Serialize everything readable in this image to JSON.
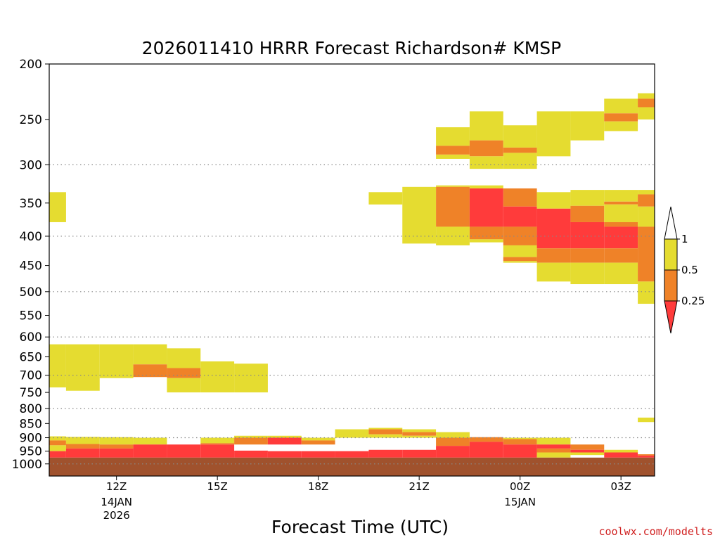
{
  "chart_data": {
    "type": "heatmap",
    "title": "2026011410 HRRR Forecast Richardson# KMSP",
    "xlabel": "Forecast Time (UTC)",
    "ylabel": "",
    "credit": "coolwx.com/modelts",
    "x_axis": {
      "unit": "forecast hours from 2026-01-14 10Z",
      "range": [
        0,
        18
      ],
      "ticks": [
        {
          "x": 2,
          "label": "12Z",
          "sub": [
            "14JAN",
            "2026"
          ]
        },
        {
          "x": 5,
          "label": "15Z",
          "sub": []
        },
        {
          "x": 8,
          "label": "18Z",
          "sub": []
        },
        {
          "x": 11,
          "label": "21Z",
          "sub": []
        },
        {
          "x": 14,
          "label": "00Z",
          "sub": [
            "15JAN"
          ]
        },
        {
          "x": 17,
          "label": "03Z",
          "sub": []
        }
      ]
    },
    "y_axis": {
      "unit": "hPa",
      "scale": "log",
      "inverted": true,
      "range": [
        200,
        1050
      ],
      "ticks": [
        200,
        250,
        300,
        350,
        400,
        450,
        500,
        550,
        600,
        650,
        700,
        750,
        800,
        850,
        900,
        950,
        1000
      ],
      "gridlines": [
        300,
        400,
        500,
        600,
        700,
        800,
        900,
        1000
      ]
    },
    "legend": {
      "placement": "right",
      "labels": [
        "1",
        "0.5",
        "0.25"
      ],
      "colors": [
        "#ffffff",
        "#e5dc30",
        "#ef8228",
        "#ff3b3b"
      ]
    },
    "colors": {
      "low": "#ff3b3b",
      "mid": "#ef8228",
      "high": "#e5dc30",
      "ground": "#a0522d"
    },
    "ground_pressure_hpa": 975,
    "cells": [
      {
        "x0": 0,
        "x1": 0.5,
        "p0": 335,
        "p1": 378,
        "c": "high"
      },
      {
        "x0": 0,
        "x1": 0.5,
        "p0": 618,
        "p1": 735,
        "c": "high"
      },
      {
        "x0": 0.5,
        "x1": 1.5,
        "p0": 618,
        "p1": 745,
        "c": "high"
      },
      {
        "x0": 1.5,
        "x1": 2.5,
        "p0": 618,
        "p1": 708,
        "c": "high"
      },
      {
        "x0": 2.5,
        "x1": 3.5,
        "p0": 618,
        "p1": 670,
        "c": "high"
      },
      {
        "x0": 2.5,
        "x1": 3.5,
        "p0": 670,
        "p1": 705,
        "c": "mid"
      },
      {
        "x0": 3.5,
        "x1": 4.5,
        "p0": 628,
        "p1": 680,
        "c": "high"
      },
      {
        "x0": 3.5,
        "x1": 4.5,
        "p0": 680,
        "p1": 708,
        "c": "mid"
      },
      {
        "x0": 3.5,
        "x1": 4.5,
        "p0": 708,
        "p1": 750,
        "c": "high"
      },
      {
        "x0": 4.5,
        "x1": 5.5,
        "p0": 662,
        "p1": 750,
        "c": "high"
      },
      {
        "x0": 5.5,
        "x1": 6.5,
        "p0": 668,
        "p1": 750,
        "c": "high"
      },
      {
        "x0": 0,
        "x1": 0.5,
        "p0": 895,
        "p1": 910,
        "c": "high"
      },
      {
        "x0": 0,
        "x1": 0.5,
        "p0": 910,
        "p1": 928,
        "c": "mid"
      },
      {
        "x0": 0,
        "x1": 0.5,
        "p0": 928,
        "p1": 950,
        "c": "high"
      },
      {
        "x0": 0,
        "x1": 0.5,
        "p0": 950,
        "p1": 975,
        "c": "low"
      },
      {
        "x0": 0.5,
        "x1": 1.5,
        "p0": 897,
        "p1": 923,
        "c": "high"
      },
      {
        "x0": 0.5,
        "x1": 1.5,
        "p0": 923,
        "p1": 940,
        "c": "mid"
      },
      {
        "x0": 0.5,
        "x1": 1.5,
        "p0": 940,
        "p1": 975,
        "c": "low"
      },
      {
        "x0": 1.5,
        "x1": 2.5,
        "p0": 898,
        "p1": 925,
        "c": "high"
      },
      {
        "x0": 1.5,
        "x1": 2.5,
        "p0": 925,
        "p1": 940,
        "c": "mid"
      },
      {
        "x0": 1.5,
        "x1": 2.5,
        "p0": 940,
        "p1": 975,
        "c": "low"
      },
      {
        "x0": 2.5,
        "x1": 3.5,
        "p0": 900,
        "p1": 925,
        "c": "high"
      },
      {
        "x0": 2.5,
        "x1": 3.5,
        "p0": 925,
        "p1": 975,
        "c": "low"
      },
      {
        "x0": 3.5,
        "x1": 4.5,
        "p0": 925,
        "p1": 975,
        "c": "low"
      },
      {
        "x0": 4.5,
        "x1": 5.5,
        "p0": 900,
        "p1": 920,
        "c": "high"
      },
      {
        "x0": 4.5,
        "x1": 5.5,
        "p0": 920,
        "p1": 925,
        "c": "mid"
      },
      {
        "x0": 4.5,
        "x1": 5.5,
        "p0": 925,
        "p1": 975,
        "c": "low"
      },
      {
        "x0": 5.5,
        "x1": 6.5,
        "p0": 893,
        "p1": 900,
        "c": "high"
      },
      {
        "x0": 5.5,
        "x1": 6.5,
        "p0": 900,
        "p1": 925,
        "c": "mid"
      },
      {
        "x0": 5.5,
        "x1": 6.5,
        "p0": 948,
        "p1": 975,
        "c": "low"
      },
      {
        "x0": 6.5,
        "x1": 7.5,
        "p0": 893,
        "p1": 900,
        "c": "high"
      },
      {
        "x0": 6.5,
        "x1": 7.5,
        "p0": 900,
        "p1": 925,
        "c": "low"
      },
      {
        "x0": 6.5,
        "x1": 7.5,
        "p0": 950,
        "p1": 975,
        "c": "low"
      },
      {
        "x0": 7.5,
        "x1": 8.5,
        "p0": 900,
        "p1": 910,
        "c": "high"
      },
      {
        "x0": 7.5,
        "x1": 8.5,
        "p0": 910,
        "p1": 925,
        "c": "mid"
      },
      {
        "x0": 7.5,
        "x1": 8.5,
        "p0": 950,
        "p1": 975,
        "c": "low"
      },
      {
        "x0": 8.5,
        "x1": 9.5,
        "p0": 870,
        "p1": 900,
        "c": "high"
      },
      {
        "x0": 8.5,
        "x1": 9.5,
        "p0": 950,
        "p1": 975,
        "c": "low"
      },
      {
        "x0": 9.5,
        "x1": 10.5,
        "p0": 865,
        "p1": 870,
        "c": "high"
      },
      {
        "x0": 9.5,
        "x1": 10.5,
        "p0": 870,
        "p1": 888,
        "c": "mid"
      },
      {
        "x0": 9.5,
        "x1": 10.5,
        "p0": 888,
        "p1": 900,
        "c": "high"
      },
      {
        "x0": 9.5,
        "x1": 10.5,
        "p0": 945,
        "p1": 975,
        "c": "low"
      },
      {
        "x0": 10.5,
        "x1": 11.5,
        "p0": 870,
        "p1": 880,
        "c": "high"
      },
      {
        "x0": 10.5,
        "x1": 11.5,
        "p0": 880,
        "p1": 893,
        "c": "mid"
      },
      {
        "x0": 10.5,
        "x1": 11.5,
        "p0": 893,
        "p1": 900,
        "c": "high"
      },
      {
        "x0": 10.5,
        "x1": 11.5,
        "p0": 945,
        "p1": 975,
        "c": "low"
      },
      {
        "x0": 11.5,
        "x1": 12.5,
        "p0": 880,
        "p1": 900,
        "c": "high"
      },
      {
        "x0": 11.5,
        "x1": 12.5,
        "p0": 900,
        "p1": 930,
        "c": "mid"
      },
      {
        "x0": 11.5,
        "x1": 12.5,
        "p0": 930,
        "p1": 975,
        "c": "low"
      },
      {
        "x0": 12.5,
        "x1": 13.5,
        "p0": 898,
        "p1": 915,
        "c": "mid"
      },
      {
        "x0": 12.5,
        "x1": 13.5,
        "p0": 915,
        "p1": 975,
        "c": "low"
      },
      {
        "x0": 13.5,
        "x1": 14.5,
        "p0": 900,
        "p1": 905,
        "c": "high"
      },
      {
        "x0": 13.5,
        "x1": 14.5,
        "p0": 905,
        "p1": 925,
        "c": "mid"
      },
      {
        "x0": 13.5,
        "x1": 14.5,
        "p0": 925,
        "p1": 975,
        "c": "low"
      },
      {
        "x0": 14.5,
        "x1": 15.5,
        "p0": 900,
        "p1": 925,
        "c": "high"
      },
      {
        "x0": 14.5,
        "x1": 15.5,
        "p0": 925,
        "p1": 940,
        "c": "low"
      },
      {
        "x0": 14.5,
        "x1": 15.5,
        "p0": 940,
        "p1": 955,
        "c": "mid"
      },
      {
        "x0": 14.5,
        "x1": 15.5,
        "p0": 955,
        "p1": 975,
        "c": "high"
      },
      {
        "x0": 15.5,
        "x1": 16.5,
        "p0": 925,
        "p1": 945,
        "c": "mid"
      },
      {
        "x0": 15.5,
        "x1": 16.5,
        "p0": 945,
        "p1": 955,
        "c": "low"
      },
      {
        "x0": 15.5,
        "x1": 16.5,
        "p0": 955,
        "p1": 965,
        "c": "high"
      },
      {
        "x0": 16.5,
        "x1": 17.5,
        "p0": 945,
        "p1": 955,
        "c": "high"
      },
      {
        "x0": 16.5,
        "x1": 17.5,
        "p0": 955,
        "p1": 975,
        "c": "low"
      },
      {
        "x0": 17.5,
        "x1": 18,
        "p0": 830,
        "p1": 845,
        "c": "high"
      },
      {
        "x0": 17.5,
        "x1": 18,
        "p0": 962,
        "p1": 967,
        "c": "mid"
      },
      {
        "x0": 17.5,
        "x1": 18,
        "p0": 967,
        "p1": 975,
        "c": "low"
      },
      {
        "x0": 9.5,
        "x1": 10.5,
        "p0": 335,
        "p1": 352,
        "c": "high"
      },
      {
        "x0": 10.5,
        "x1": 11.5,
        "p0": 328,
        "p1": 412,
        "c": "high"
      },
      {
        "x0": 11.5,
        "x1": 12.5,
        "p0": 258,
        "p1": 278,
        "c": "high"
      },
      {
        "x0": 11.5,
        "x1": 12.5,
        "p0": 278,
        "p1": 288,
        "c": "mid"
      },
      {
        "x0": 11.5,
        "x1": 12.5,
        "p0": 288,
        "p1": 293,
        "c": "high"
      },
      {
        "x0": 11.5,
        "x1": 12.5,
        "p0": 326,
        "p1": 328,
        "c": "high"
      },
      {
        "x0": 11.5,
        "x1": 12.5,
        "p0": 328,
        "p1": 385,
        "c": "mid"
      },
      {
        "x0": 11.5,
        "x1": 12.5,
        "p0": 385,
        "p1": 415,
        "c": "high"
      },
      {
        "x0": 12.5,
        "x1": 13.5,
        "p0": 242,
        "p1": 272,
        "c": "high"
      },
      {
        "x0": 12.5,
        "x1": 13.5,
        "p0": 272,
        "p1": 290,
        "c": "mid"
      },
      {
        "x0": 12.5,
        "x1": 13.5,
        "p0": 290,
        "p1": 305,
        "c": "high"
      },
      {
        "x0": 12.5,
        "x1": 13.5,
        "p0": 326,
        "p1": 330,
        "c": "high"
      },
      {
        "x0": 12.5,
        "x1": 13.5,
        "p0": 330,
        "p1": 385,
        "c": "low"
      },
      {
        "x0": 12.5,
        "x1": 13.5,
        "p0": 385,
        "p1": 405,
        "c": "mid"
      },
      {
        "x0": 12.5,
        "x1": 13.5,
        "p0": 405,
        "p1": 410,
        "c": "high"
      },
      {
        "x0": 13.5,
        "x1": 14.5,
        "p0": 256,
        "p1": 280,
        "c": "high"
      },
      {
        "x0": 13.5,
        "x1": 14.5,
        "p0": 280,
        "p1": 286,
        "c": "mid"
      },
      {
        "x0": 13.5,
        "x1": 14.5,
        "p0": 286,
        "p1": 305,
        "c": "high"
      },
      {
        "x0": 13.5,
        "x1": 14.5,
        "p0": 330,
        "p1": 355,
        "c": "mid"
      },
      {
        "x0": 13.5,
        "x1": 14.5,
        "p0": 355,
        "p1": 385,
        "c": "low"
      },
      {
        "x0": 13.5,
        "x1": 14.5,
        "p0": 385,
        "p1": 415,
        "c": "mid"
      },
      {
        "x0": 13.5,
        "x1": 14.5,
        "p0": 415,
        "p1": 435,
        "c": "high"
      },
      {
        "x0": 13.5,
        "x1": 14.5,
        "p0": 435,
        "p1": 442,
        "c": "mid"
      },
      {
        "x0": 13.5,
        "x1": 14.5,
        "p0": 442,
        "p1": 445,
        "c": "high"
      },
      {
        "x0": 14.5,
        "x1": 15.5,
        "p0": 242,
        "p1": 290,
        "c": "high"
      },
      {
        "x0": 14.5,
        "x1": 15.5,
        "p0": 335,
        "p1": 358,
        "c": "high"
      },
      {
        "x0": 14.5,
        "x1": 15.5,
        "p0": 358,
        "p1": 420,
        "c": "low"
      },
      {
        "x0": 14.5,
        "x1": 15.5,
        "p0": 420,
        "p1": 445,
        "c": "mid"
      },
      {
        "x0": 14.5,
        "x1": 15.5,
        "p0": 445,
        "p1": 480,
        "c": "high"
      },
      {
        "x0": 15.5,
        "x1": 16.5,
        "p0": 242,
        "p1": 272,
        "c": "high"
      },
      {
        "x0": 15.5,
        "x1": 16.5,
        "p0": 332,
        "p1": 354,
        "c": "high"
      },
      {
        "x0": 15.5,
        "x1": 16.5,
        "p0": 354,
        "p1": 378,
        "c": "mid"
      },
      {
        "x0": 15.5,
        "x1": 16.5,
        "p0": 378,
        "p1": 420,
        "c": "low"
      },
      {
        "x0": 15.5,
        "x1": 16.5,
        "p0": 420,
        "p1": 445,
        "c": "mid"
      },
      {
        "x0": 15.5,
        "x1": 16.5,
        "p0": 445,
        "p1": 485,
        "c": "high"
      },
      {
        "x0": 16.5,
        "x1": 17.5,
        "p0": 230,
        "p1": 244,
        "c": "high"
      },
      {
        "x0": 16.5,
        "x1": 17.5,
        "p0": 244,
        "p1": 252,
        "c": "mid"
      },
      {
        "x0": 16.5,
        "x1": 17.5,
        "p0": 252,
        "p1": 262,
        "c": "high"
      },
      {
        "x0": 16.5,
        "x1": 17.5,
        "p0": 332,
        "p1": 348,
        "c": "high"
      },
      {
        "x0": 16.5,
        "x1": 17.5,
        "p0": 348,
        "p1": 352,
        "c": "mid"
      },
      {
        "x0": 16.5,
        "x1": 17.5,
        "p0": 352,
        "p1": 378,
        "c": "high"
      },
      {
        "x0": 16.5,
        "x1": 17.5,
        "p0": 378,
        "p1": 385,
        "c": "mid"
      },
      {
        "x0": 16.5,
        "x1": 17.5,
        "p0": 385,
        "p1": 420,
        "c": "low"
      },
      {
        "x0": 16.5,
        "x1": 17.5,
        "p0": 420,
        "p1": 445,
        "c": "mid"
      },
      {
        "x0": 16.5,
        "x1": 17.5,
        "p0": 445,
        "p1": 485,
        "c": "high"
      },
      {
        "x0": 17.5,
        "x1": 18,
        "p0": 225,
        "p1": 230,
        "c": "high"
      },
      {
        "x0": 17.5,
        "x1": 18,
        "p0": 230,
        "p1": 238,
        "c": "mid"
      },
      {
        "x0": 17.5,
        "x1": 18,
        "p0": 238,
        "p1": 250,
        "c": "high"
      },
      {
        "x0": 17.5,
        "x1": 18,
        "p0": 332,
        "p1": 338,
        "c": "high"
      },
      {
        "x0": 17.5,
        "x1": 18,
        "p0": 338,
        "p1": 355,
        "c": "mid"
      },
      {
        "x0": 17.5,
        "x1": 18,
        "p0": 355,
        "p1": 385,
        "c": "high"
      },
      {
        "x0": 17.5,
        "x1": 18,
        "p0": 385,
        "p1": 480,
        "c": "mid"
      },
      {
        "x0": 17.5,
        "x1": 18,
        "p0": 480,
        "p1": 525,
        "c": "high"
      }
    ]
  }
}
